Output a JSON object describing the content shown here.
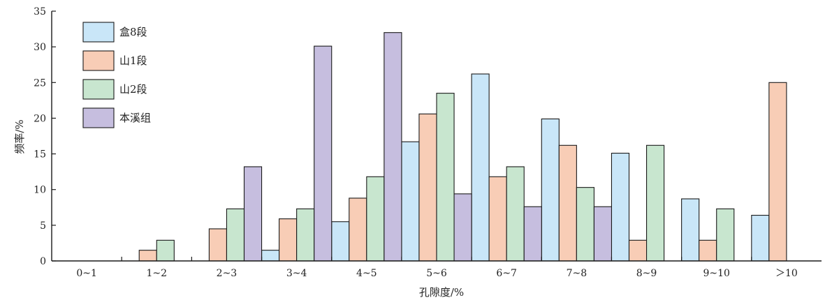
{
  "chart_data": {
    "type": "bar",
    "xlabel": "孔隙度/%",
    "ylabel": "频率/%",
    "ylim": [
      0,
      35
    ],
    "yticks": [
      0,
      5,
      10,
      15,
      20,
      25,
      30,
      35
    ],
    "categories": [
      "0~1",
      "1~2",
      "2~3",
      "3~4",
      "4~5",
      "5~6",
      "6~7",
      "7~8",
      "8~9",
      "9~10",
      "＞10"
    ],
    "legend_position": "top-left",
    "grid": false,
    "series": [
      {
        "name": "盒8段",
        "color": "#c9e6f8",
        "values": [
          0,
          0,
          0,
          1.5,
          5.5,
          16.7,
          26.2,
          19.9,
          15.1,
          8.7,
          6.4
        ]
      },
      {
        "name": "山1段",
        "color": "#f8cdb6",
        "values": [
          0,
          1.5,
          4.5,
          5.9,
          8.8,
          20.6,
          11.8,
          16.2,
          2.9,
          2.9,
          25.0
        ]
      },
      {
        "name": "山2段",
        "color": "#c8e6cf",
        "values": [
          0,
          2.9,
          7.3,
          7.3,
          11.8,
          23.5,
          13.2,
          10.3,
          16.2,
          7.3,
          0
        ]
      },
      {
        "name": "本溪组",
        "color": "#c6bedf",
        "values": [
          0,
          0,
          13.2,
          30.1,
          32.0,
          9.4,
          7.6,
          7.6,
          0,
          0,
          0
        ]
      }
    ]
  }
}
